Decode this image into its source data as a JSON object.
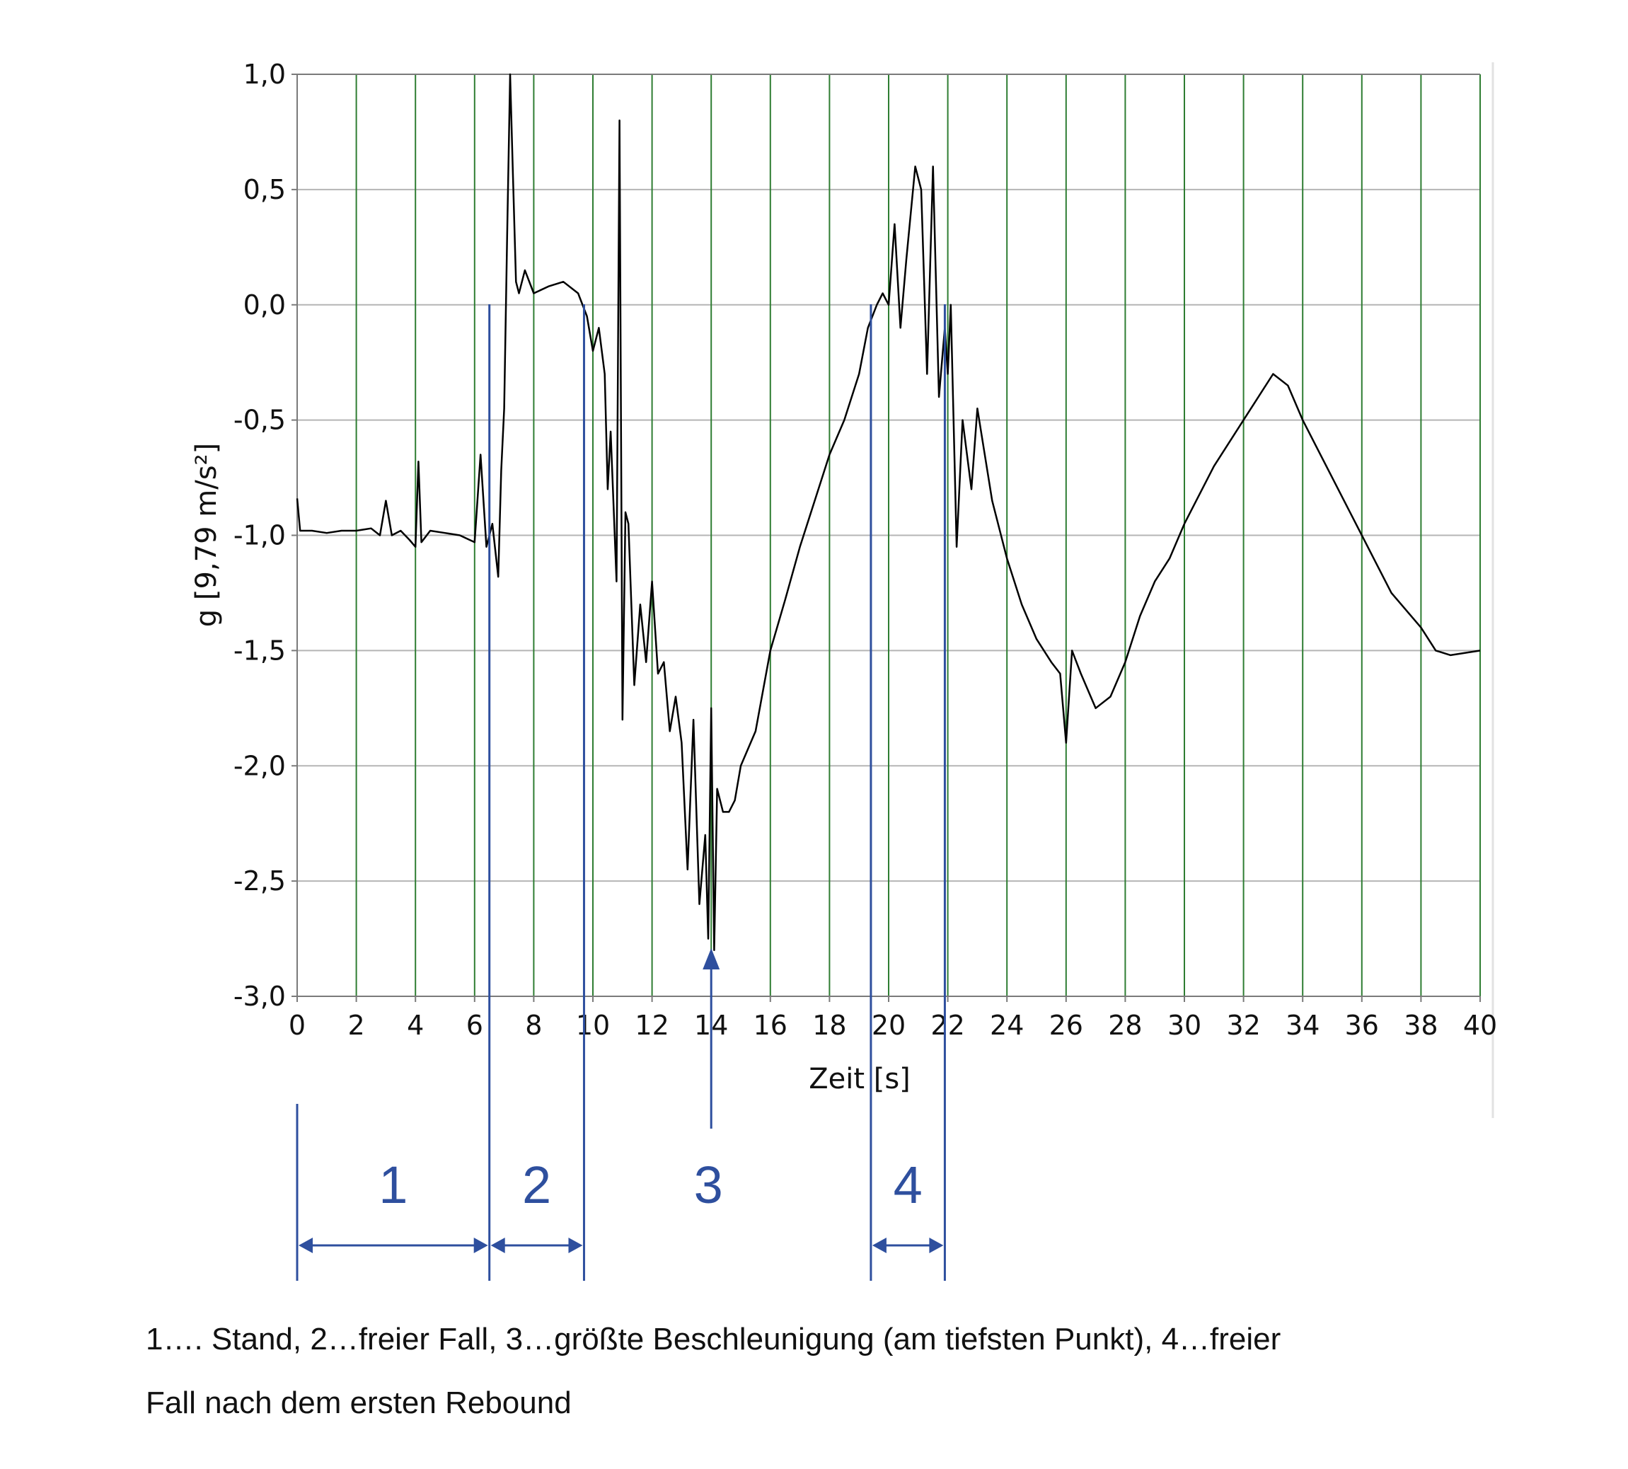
{
  "chart_data": {
    "type": "line",
    "title": "",
    "xlabel": "Zeit [s]",
    "ylabel": "g [9,79 m/s²]",
    "xlim": [
      0,
      40
    ],
    "ylim": [
      -3.0,
      1.0
    ],
    "x_ticks": [
      0,
      2,
      4,
      6,
      8,
      10,
      12,
      14,
      16,
      18,
      20,
      22,
      24,
      26,
      28,
      30,
      32,
      34,
      36,
      38,
      40
    ],
    "x_tick_labels": [
      "0",
      "2",
      "4",
      "6",
      "8",
      "10",
      "12",
      "14",
      "16",
      "18",
      "20",
      "22",
      "24",
      "26",
      "28",
      "30",
      "32",
      "34",
      "36",
      "38",
      "40"
    ],
    "y_ticks": [
      1.0,
      0.5,
      0.0,
      -0.5,
      -1.0,
      -1.5,
      -2.0,
      -2.5,
      -3.0
    ],
    "y_tick_labels": [
      "1,0",
      "0,5",
      "0,0",
      "-0,5",
      "-1,0",
      "-1,5",
      "-2,0",
      "-2,5",
      "-3,0"
    ],
    "grid": true,
    "legend": "none",
    "colors": {
      "series": "#000000",
      "vertical_grid": "#2e7d32",
      "horizontal_grid": "#b5b5b5",
      "annotation": "#2e4f9e"
    },
    "series": [
      {
        "x": [
          0,
          0.1,
          0.5,
          1,
          1.5,
          2,
          2.5,
          2.8,
          3.0,
          3.2,
          3.5,
          3.8,
          4.0,
          4.1,
          4.2,
          4.5,
          5,
          5.5,
          6.0,
          6.2,
          6.4,
          6.6,
          6.8,
          6.9,
          7.0,
          7.1,
          7.2,
          7.3,
          7.4,
          7.5,
          7.7,
          8.0,
          8.5,
          9.0,
          9.5,
          9.8,
          10.0,
          10.2,
          10.4,
          10.5,
          10.6,
          10.8,
          10.9,
          11.0,
          11.1,
          11.2,
          11.4,
          11.6,
          11.8,
          12.0,
          12.2,
          12.4,
          12.6,
          12.8,
          13.0,
          13.2,
          13.4,
          13.5,
          13.6,
          13.8,
          13.9,
          14.0,
          14.1,
          14.2,
          14.4,
          14.6,
          14.8,
          15.0,
          15.5,
          16.0,
          16.5,
          17.0,
          17.5,
          18.0,
          18.5,
          19.0,
          19.3,
          19.6,
          19.8,
          20.0,
          20.2,
          20.4,
          20.6,
          20.9,
          21.1,
          21.3,
          21.5,
          21.7,
          21.9,
          22.0,
          22.1,
          22.3,
          22.5,
          22.8,
          23.0,
          23.5,
          24.0,
          24.5,
          25.0,
          25.5,
          25.8,
          26.0,
          26.2,
          26.5,
          27.0,
          27.5,
          28.0,
          28.5,
          29.0,
          29.5,
          30.0,
          31.0,
          32.0,
          33.0,
          33.5,
          34.0,
          35.0,
          36.0,
          37.0,
          38.0,
          38.5,
          39.0,
          40.0
        ],
        "y": [
          -0.84,
          -0.98,
          -0.98,
          -0.99,
          -0.98,
          -0.98,
          -0.97,
          -1.0,
          -0.85,
          -1.0,
          -0.98,
          -1.02,
          -1.05,
          -0.68,
          -1.03,
          -0.98,
          -0.99,
          -1.0,
          -1.03,
          -0.65,
          -1.05,
          -0.95,
          -1.18,
          -0.72,
          -0.45,
          0.3,
          1.0,
          0.55,
          0.1,
          0.05,
          0.15,
          0.05,
          0.08,
          0.1,
          0.05,
          -0.05,
          -0.2,
          -0.1,
          -0.3,
          -0.8,
          -0.55,
          -1.2,
          0.8,
          -1.8,
          -0.9,
          -0.95,
          -1.65,
          -1.3,
          -1.55,
          -1.2,
          -1.6,
          -1.55,
          -1.85,
          -1.7,
          -1.9,
          -2.45,
          -1.8,
          -2.2,
          -2.6,
          -2.3,
          -2.75,
          -1.75,
          -2.8,
          -2.1,
          -2.2,
          -2.2,
          -2.15,
          -2.0,
          -1.85,
          -1.5,
          -1.28,
          -1.05,
          -0.85,
          -0.65,
          -0.5,
          -0.3,
          -0.1,
          0.0,
          0.05,
          0.0,
          0.35,
          -0.1,
          0.2,
          0.6,
          0.5,
          -0.3,
          0.6,
          -0.4,
          -0.1,
          -0.3,
          0.0,
          -1.05,
          -0.5,
          -0.8,
          -0.45,
          -0.85,
          -1.1,
          -1.3,
          -1.45,
          -1.55,
          -1.6,
          -1.9,
          -1.5,
          -1.6,
          -1.75,
          -1.7,
          -1.55,
          -1.35,
          -1.2,
          -1.1,
          -0.95,
          -0.7,
          -0.5,
          -0.3,
          -0.35,
          -0.5,
          -0.75,
          -1.0,
          -1.25,
          -1.4,
          -1.5,
          -1.52,
          -1.5
        ]
      }
    ],
    "annotations": [
      {
        "label": "1",
        "from": 0,
        "to": 6.5
      },
      {
        "label": "2",
        "from": 6.5,
        "to": 9.7
      },
      {
        "label": "3",
        "at": 14
      },
      {
        "label": "4",
        "from": 19.4,
        "to": 21.9
      }
    ]
  },
  "caption": {
    "line1": "1…. Stand,  2…freier Fall,  3…größte Beschleunigung (am tiefsten Punkt),   4…freier",
    "line2": "Fall nach dem ersten Rebound"
  }
}
